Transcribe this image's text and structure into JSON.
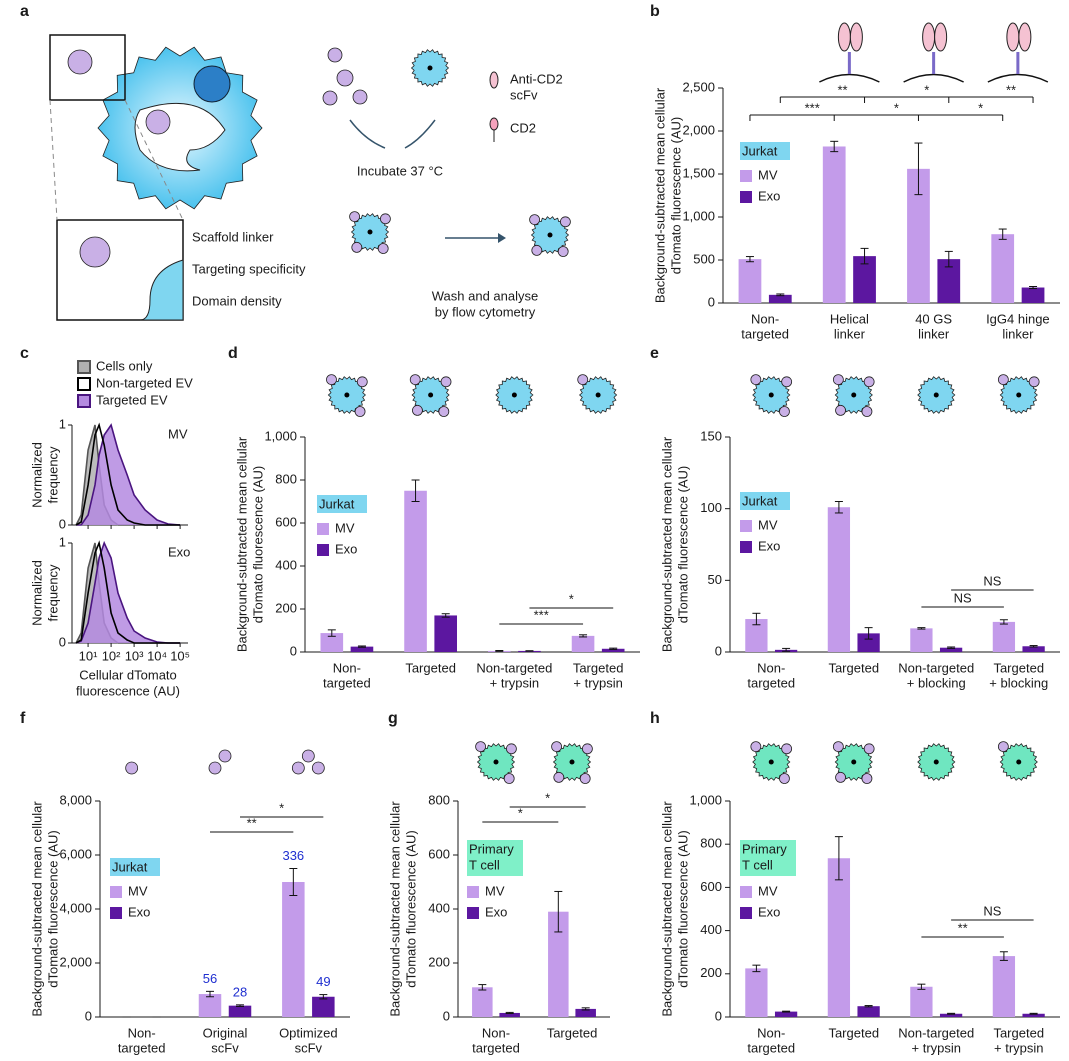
{
  "diagram": {
    "panel": "a",
    "labels": {
      "scfv": [
        "Anti-CD2",
        "scFv"
      ],
      "cd2": "CD2",
      "incubate": "Incubate 37 °C",
      "wash": [
        "Wash and analyse",
        "by flow cytometry"
      ],
      "features": [
        "Scaffold linker",
        "Targeting specificity",
        "Domain density"
      ]
    }
  },
  "chart_data": [
    {
      "type": "bar",
      "panel": "b",
      "ylabel": [
        "Background-subtracted mean cellular",
        "dTomato fluorescence (AU)"
      ],
      "categories": [
        [
          "Non-",
          "targeted"
        ],
        [
          "Helical",
          "linker"
        ],
        [
          "40 GS",
          "linker"
        ],
        [
          "IgG4 hinge",
          "linker"
        ]
      ],
      "ylim": [
        0,
        2500
      ],
      "yticks": [
        0,
        500,
        {
          "value": 1000,
          "label": "1,000"
        },
        {
          "value": 1500,
          "label": "1,500"
        },
        {
          "value": 2000,
          "label": "2,000"
        },
        {
          "value": 2500,
          "label": "2,500"
        }
      ],
      "legend_title": [
        "Jurkat"
      ],
      "legend_color": "#7fd6f0",
      "series": [
        {
          "name": "MV",
          "color": "#c39bea",
          "values": [
            510,
            1820,
            1560,
            800
          ],
          "errors": [
            30,
            60,
            300,
            60
          ]
        },
        {
          "name": "Exo",
          "color": "#5c17a0",
          "values": [
            95,
            545,
            510,
            180
          ],
          "errors": [
            10,
            90,
            90,
            12
          ]
        }
      ],
      "significance": [
        {
          "labels": [
            "***",
            "*",
            "*"
          ],
          "from": [
            0,
            0
          ],
          "to": [
            [
              1,
              0
            ],
            [
              2,
              0
            ],
            [
              3,
              0
            ]
          ]
        },
        {
          "labels": [
            "**",
            "*",
            "**"
          ],
          "from": [
            0,
            1
          ],
          "to": [
            [
              1,
              1
            ],
            [
              2,
              1
            ],
            [
              3,
              1
            ]
          ]
        }
      ]
    },
    {
      "type": "density",
      "panel": "c",
      "ylabel": [
        "Normalized",
        "frequency"
      ],
      "xlabel": [
        "Cellular dTomato",
        "fluorescence (AU)"
      ],
      "xscale": "log",
      "xlim": [
        2,
        220000
      ],
      "xticks": [
        {
          "value": 10,
          "label": "10¹"
        },
        {
          "value": 100,
          "label": "10²"
        },
        {
          "value": 1000,
          "label": "10³"
        },
        {
          "value": 10000,
          "label": "10⁴"
        },
        {
          "value": 100000,
          "label": "10⁵"
        }
      ],
      "ylim": [
        0,
        1
      ],
      "yticks": [
        0,
        1
      ],
      "x": [
        3,
        5,
        10,
        20,
        30,
        50,
        100,
        200,
        500,
        1000,
        3000,
        10000,
        30000,
        100000
      ],
      "series": [
        {
          "name": "Cells only",
          "color": "#555555",
          "fill": "#b0b0b0"
        },
        {
          "name": "Non-targeted EV",
          "color": "#000000",
          "fill": "none"
        },
        {
          "name": "Targeted EV",
          "color": "#4a1580",
          "fill": "#b48ae0"
        }
      ],
      "plots": [
        {
          "label": "MV",
          "values": [
            [
              0,
              0.1,
              0.75,
              1.0,
              0.6,
              0.2,
              0.05,
              0,
              0,
              0,
              0,
              0,
              0,
              0
            ],
            [
              0,
              0.03,
              0.4,
              0.9,
              1.0,
              0.8,
              0.4,
              0.15,
              0.05,
              0.02,
              0,
              0,
              0,
              0
            ],
            [
              0,
              0,
              0.1,
              0.4,
              0.7,
              0.9,
              1.0,
              0.75,
              0.5,
              0.3,
              0.15,
              0.05,
              0.01,
              0
            ]
          ]
        },
        {
          "label": "Exo",
          "values": [
            [
              0,
              0.1,
              0.75,
              1.0,
              0.6,
              0.2,
              0.05,
              0,
              0,
              0,
              0,
              0,
              0,
              0
            ],
            [
              0,
              0.03,
              0.5,
              0.9,
              1.0,
              0.75,
              0.3,
              0.1,
              0.03,
              0,
              0,
              0,
              0,
              0
            ],
            [
              0,
              0.02,
              0.2,
              0.6,
              0.85,
              1.0,
              0.85,
              0.5,
              0.25,
              0.12,
              0.05,
              0.01,
              0,
              0
            ]
          ]
        }
      ]
    },
    {
      "type": "bar",
      "panel": "d",
      "ylabel": [
        "Background-subtracted mean cellular",
        "dTomato fluorescence (AU)"
      ],
      "categories": [
        [
          "Non-",
          "targeted"
        ],
        [
          "Targeted"
        ],
        [
          "Non-targeted",
          "+ trypsin"
        ],
        [
          "Targeted",
          "+ trypsin"
        ]
      ],
      "ylim": [
        0,
        1000
      ],
      "yticks": [
        0,
        200,
        400,
        600,
        800,
        {
          "value": 1000,
          "label": "1,000"
        }
      ],
      "legend_title": [
        "Jurkat"
      ],
      "legend_color": "#7fd6f0",
      "series": [
        {
          "name": "MV",
          "color": "#c39bea",
          "values": [
            88,
            750,
            5,
            75
          ],
          "errors": [
            15,
            50,
            2,
            5
          ]
        },
        {
          "name": "Exo",
          "color": "#5c17a0",
          "values": [
            25,
            170,
            5,
            15
          ],
          "errors": [
            3,
            8,
            1,
            3
          ]
        }
      ],
      "significance": [
        {
          "labels": [
            "***"
          ],
          "from": [
            2,
            0
          ],
          "to": [
            [
              3,
              0
            ]
          ]
        },
        {
          "labels": [
            "*"
          ],
          "from": [
            2,
            1
          ],
          "to": [
            [
              3,
              1
            ]
          ]
        }
      ]
    },
    {
      "type": "bar",
      "panel": "e",
      "ylabel": [
        "Background-subtracted mean cellular",
        "dTomato fluorescence (AU)"
      ],
      "categories": [
        [
          "Non-",
          "targeted"
        ],
        [
          "Targeted"
        ],
        [
          "Non-targeted",
          "+ blocking"
        ],
        [
          "Targeted",
          "+ blocking"
        ]
      ],
      "ylim": [
        0,
        150
      ],
      "yticks": [
        0,
        50,
        100,
        150
      ],
      "legend_title": [
        "Jurkat"
      ],
      "legend_color": "#7fd6f0",
      "series": [
        {
          "name": "MV",
          "color": "#c39bea",
          "values": [
            23,
            101,
            16.5,
            21
          ],
          "errors": [
            4,
            4,
            0.5,
            1.5
          ]
        },
        {
          "name": "Exo",
          "color": "#5c17a0",
          "values": [
            1.5,
            13,
            3,
            4
          ],
          "errors": [
            1,
            4,
            0.5,
            0.5
          ]
        }
      ],
      "significance": [
        {
          "labels": [
            "NS"
          ],
          "from": [
            2,
            0
          ],
          "to": [
            [
              3,
              0
            ]
          ]
        },
        {
          "labels": [
            "NS"
          ],
          "from": [
            2,
            1
          ],
          "to": [
            [
              3,
              1
            ]
          ]
        }
      ]
    },
    {
      "type": "bar",
      "panel": "f",
      "ylabel": [
        "Background-subtracted mean cellular",
        "dTomato fluorescence (AU)"
      ],
      "categories": [
        [
          "Non-",
          "targeted"
        ],
        [
          "Original",
          "scFv"
        ],
        [
          "Optimized",
          "scFv"
        ]
      ],
      "ylim": [
        0,
        8000
      ],
      "yticks": [
        0,
        {
          "value": 2000,
          "label": "2,000"
        },
        {
          "value": 4000,
          "label": "4,000"
        },
        {
          "value": 6000,
          "label": "6,000"
        },
        {
          "value": 8000,
          "label": "8,000"
        }
      ],
      "legend_title": [
        "Jurkat"
      ],
      "legend_color": "#7fd6f0",
      "series": [
        {
          "name": "MV",
          "color": "#c39bea",
          "values": [
            0,
            850,
            5000
          ],
          "errors": [
            0,
            100,
            500
          ],
          "annotations": [
            null,
            56,
            336
          ]
        },
        {
          "name": "Exo",
          "color": "#5c17a0",
          "values": [
            0,
            420,
            750
          ],
          "errors": [
            0,
            30,
            80
          ],
          "annotations": [
            null,
            28,
            49
          ]
        }
      ],
      "annotation_color": "#1f2fd0",
      "significance": [
        {
          "labels": [
            "**"
          ],
          "from": [
            1,
            0
          ],
          "to": [
            [
              2,
              0
            ]
          ]
        },
        {
          "labels": [
            "*"
          ],
          "from": [
            1,
            1
          ],
          "to": [
            [
              2,
              1
            ]
          ]
        }
      ]
    },
    {
      "type": "bar",
      "panel": "g",
      "ylabel": [
        "Background-subtracted mean cellular",
        "dTomato fluorescence (AU)"
      ],
      "categories": [
        [
          "Non-",
          "targeted"
        ],
        [
          "Targeted"
        ]
      ],
      "ylim": [
        0,
        800
      ],
      "yticks": [
        0,
        200,
        400,
        600,
        800
      ],
      "legend_title": [
        "Primary",
        "T cell"
      ],
      "legend_color": "#7ff0c8",
      "series": [
        {
          "name": "MV",
          "color": "#c39bea",
          "values": [
            110,
            390
          ],
          "errors": [
            10,
            75
          ]
        },
        {
          "name": "Exo",
          "color": "#5c17a0",
          "values": [
            15,
            30
          ],
          "errors": [
            2,
            4
          ]
        }
      ],
      "significance": [
        {
          "labels": [
            "*"
          ],
          "from": [
            0,
            0
          ],
          "to": [
            [
              1,
              0
            ]
          ]
        },
        {
          "labels": [
            "*"
          ],
          "from": [
            0,
            1
          ],
          "to": [
            [
              1,
              1
            ]
          ]
        }
      ]
    },
    {
      "type": "bar",
      "panel": "h",
      "ylabel": [
        "Background-subtracted mean cellular",
        "dTomato fluorescence (AU)"
      ],
      "categories": [
        [
          "Non-",
          "targeted"
        ],
        [
          "Targeted"
        ],
        [
          "Non-targeted",
          "+ trypsin"
        ],
        [
          "Targeted",
          "+ trypsin"
        ]
      ],
      "ylim": [
        0,
        1000
      ],
      "yticks": [
        0,
        200,
        400,
        600,
        800,
        {
          "value": 1000,
          "label": "1,000"
        }
      ],
      "legend_title": [
        "Primary",
        "T cell"
      ],
      "legend_color": "#7ff0c8",
      "series": [
        {
          "name": "MV",
          "color": "#c39bea",
          "values": [
            225,
            735,
            140,
            282
          ],
          "errors": [
            15,
            100,
            12,
            20
          ]
        },
        {
          "name": "Exo",
          "color": "#5c17a0",
          "values": [
            25,
            50,
            15,
            15
          ],
          "errors": [
            2,
            3,
            2,
            2
          ]
        }
      ],
      "significance": [
        {
          "labels": [
            "**"
          ],
          "from": [
            2,
            0
          ],
          "to": [
            [
              3,
              0
            ]
          ]
        },
        {
          "labels": [
            "NS"
          ],
          "from": [
            2,
            1
          ],
          "to": [
            [
              3,
              1
            ]
          ]
        }
      ]
    }
  ]
}
